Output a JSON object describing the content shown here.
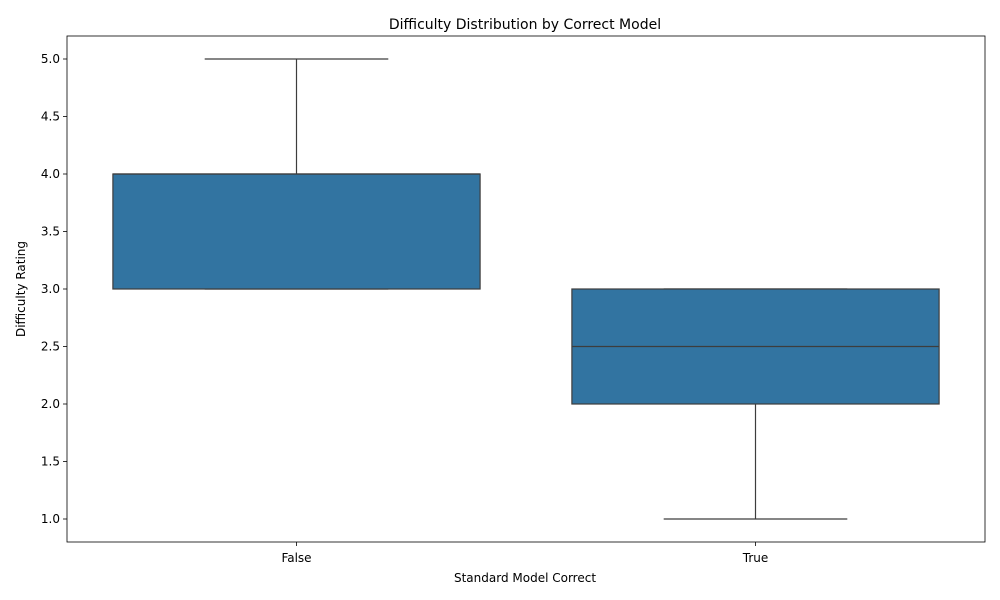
{
  "chart_data": {
    "type": "box",
    "title": "Difficulty Distribution by Correct Model",
    "xlabel": "Standard Model Correct",
    "ylabel": "Difficulty Rating",
    "ylim": [
      0.8,
      5.2
    ],
    "yticks": [
      1.0,
      1.5,
      2.0,
      2.5,
      3.0,
      3.5,
      4.0,
      4.5,
      5.0
    ],
    "ytick_labels": [
      "1.0",
      "1.5",
      "2.0",
      "2.5",
      "3.0",
      "3.5",
      "4.0",
      "4.5",
      "5.0"
    ],
    "categories": [
      "False",
      "True"
    ],
    "box_color": "#3274a1",
    "line_color": "#3d3d3d",
    "boxes": [
      {
        "category": "False",
        "whisker_low": 3.0,
        "q1": 3.0,
        "median": 4.0,
        "q3": 4.0,
        "whisker_high": 5.0
      },
      {
        "category": "True",
        "whisker_low": 1.0,
        "q1": 2.0,
        "median": 2.5,
        "q3": 3.0,
        "whisker_high": 3.0
      }
    ]
  }
}
